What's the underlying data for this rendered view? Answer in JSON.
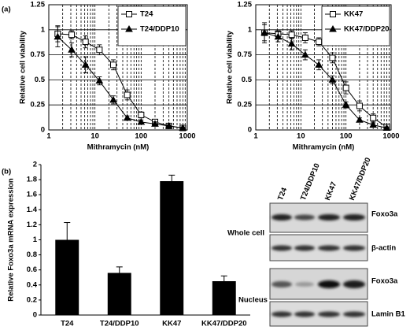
{
  "panel_labels": [
    "(a)",
    "(b)"
  ],
  "chart_data": [
    {
      "type": "line",
      "xscale": "log",
      "x_label": "Mithramycin (nM)",
      "y_label": "Relative cell viability",
      "x": [
        1.56,
        3.13,
        6.25,
        12.5,
        25,
        50,
        100,
        200,
        400,
        800
      ],
      "xlim": [
        1,
        1000
      ],
      "xticks": [
        1,
        10,
        100,
        1000
      ],
      "ylim": [
        0,
        1.25
      ],
      "yticks": [
        0,
        0.25,
        0.5,
        0.75,
        1,
        1.25
      ],
      "grid": true,
      "minor_grid": true,
      "legend": "upper right",
      "series": [
        {
          "name": "T24",
          "color": "#000000",
          "marker": "square-open",
          "values": [
            0.96,
            0.95,
            0.88,
            0.8,
            0.65,
            0.35,
            0.15,
            0.08,
            0.04,
            0.02
          ],
          "errors": [
            0.08,
            0.04,
            0.06,
            0.05,
            0.05,
            0.05,
            0.03,
            0.02,
            0.02,
            0.01
          ]
        },
        {
          "name": "T24/DDP10",
          "color": "#000000",
          "marker": "triangle-filled",
          "values": [
            0.93,
            0.8,
            0.65,
            0.49,
            0.3,
            0.12,
            0.08,
            0.06,
            0.04,
            0.02
          ],
          "errors": [
            0.1,
            0.07,
            0.08,
            0.04,
            0.04,
            0.02,
            0.02,
            0.02,
            0.01,
            0.01
          ]
        }
      ]
    },
    {
      "type": "line",
      "xscale": "log",
      "x_label": "Mithramycin (nM)",
      "y_label": "Relative cell viability",
      "x": [
        1.56,
        3.13,
        6.25,
        12.5,
        25,
        50,
        100,
        200,
        400,
        800
      ],
      "xlim": [
        1,
        1000
      ],
      "xticks": [
        1,
        10,
        100,
        1000
      ],
      "ylim": [
        0,
        1.25
      ],
      "yticks": [
        0,
        0.25,
        0.5,
        0.75,
        1,
        1.25
      ],
      "grid": true,
      "minor_grid": true,
      "legend": "upper right",
      "series": [
        {
          "name": "KK47",
          "color": "#000000",
          "marker": "square-open",
          "values": [
            0.97,
            0.96,
            0.95,
            0.92,
            0.88,
            0.72,
            0.42,
            0.24,
            0.12,
            0.03
          ],
          "errors": [
            0.08,
            0.03,
            0.04,
            0.05,
            0.04,
            0.05,
            0.06,
            0.05,
            0.04,
            0.02
          ]
        },
        {
          "name": "KK47/DDP20",
          "color": "#000000",
          "marker": "triangle-filled",
          "values": [
            0.97,
            0.93,
            0.86,
            0.75,
            0.65,
            0.5,
            0.25,
            0.1,
            0.05,
            0.02
          ],
          "errors": [
            0.1,
            0.05,
            0.06,
            0.05,
            0.05,
            0.04,
            0.03,
            0.02,
            0.02,
            0.01
          ]
        }
      ]
    },
    {
      "type": "bar",
      "y_label": "Relative Foxo3a mRNA expression",
      "categories": [
        "T24",
        "T24/DDP10",
        "KK47",
        "KK47/DDP20"
      ],
      "values": [
        1.0,
        0.56,
        1.78,
        0.45
      ],
      "errors": [
        0.23,
        0.08,
        0.08,
        0.07
      ],
      "color": "#000000",
      "ylim": [
        0,
        2
      ],
      "yticks": [
        0,
        0.2,
        0.4,
        0.6,
        0.8,
        1,
        1.2,
        1.4,
        1.6,
        1.8,
        2
      ],
      "grid": false
    }
  ],
  "blot": {
    "columns": [
      "T24",
      "T24/DDP10",
      "KK47",
      "KK47/DDP20"
    ],
    "rows": [
      "Foxo3a",
      "β-actin",
      "Foxo3a",
      "Lamin B1"
    ],
    "groups": [
      "Whole cell",
      "Nucleus"
    ]
  }
}
